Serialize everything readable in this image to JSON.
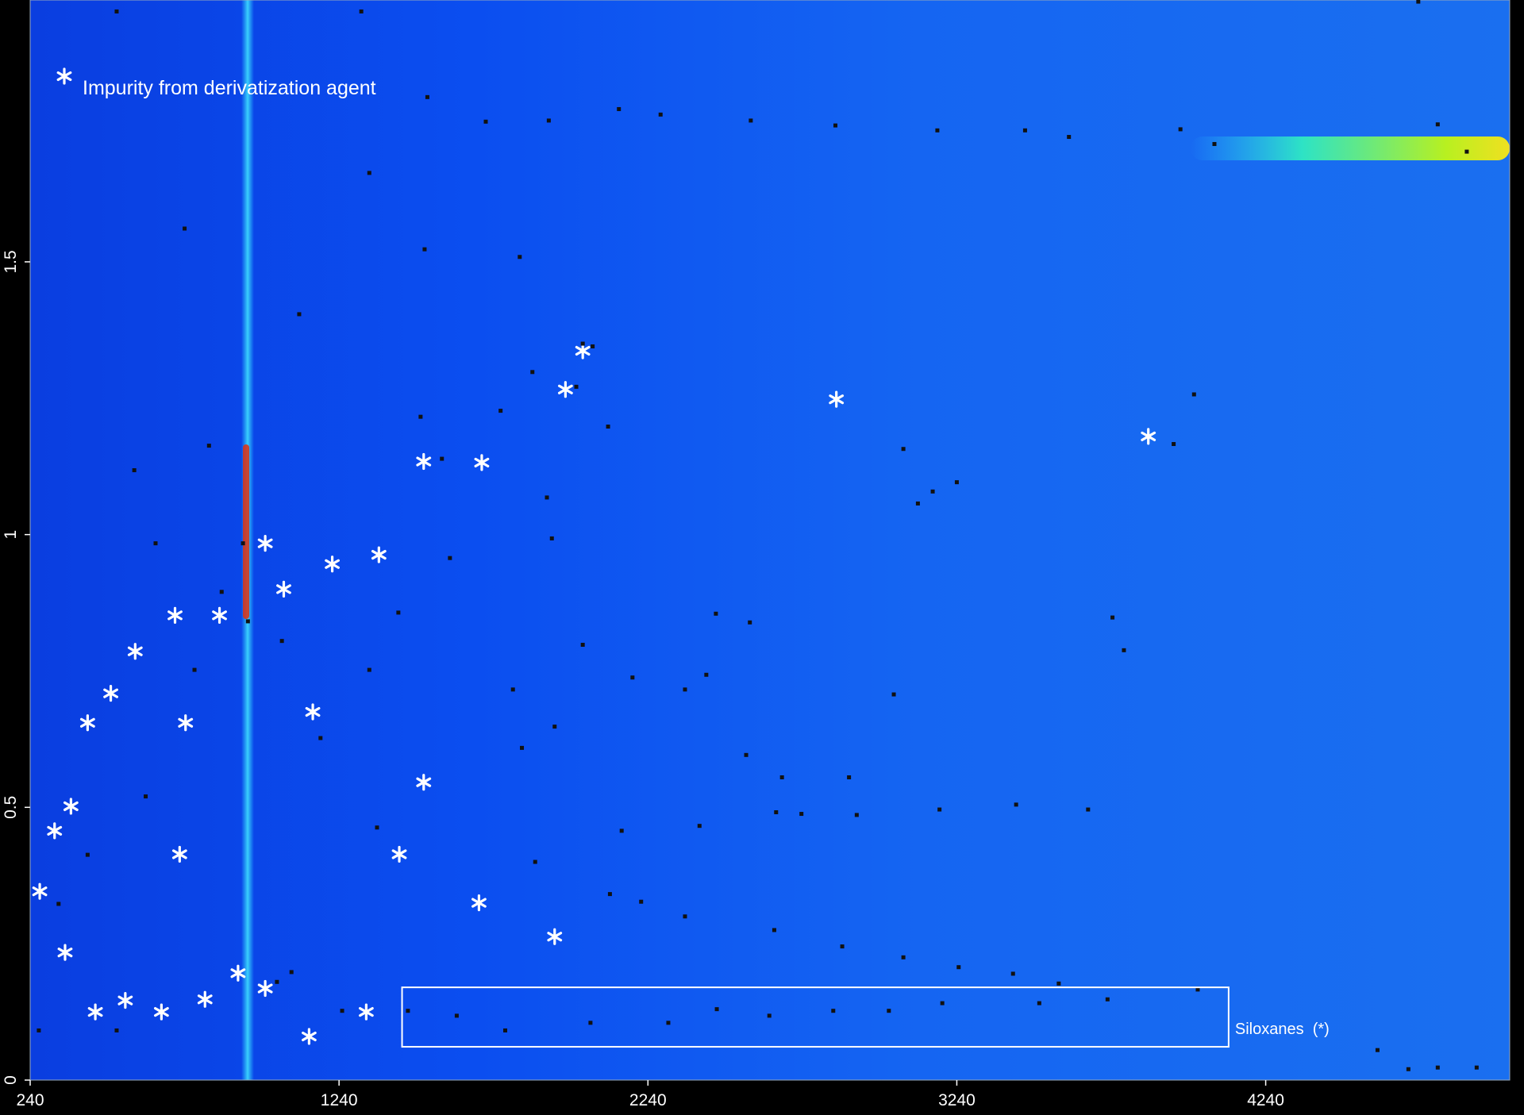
{
  "chart_data": {
    "type": "scatter",
    "xlim": [
      240,
      5030
    ],
    "ylim": [
      0,
      1.98
    ],
    "xticks": [
      240,
      1240,
      2240,
      3240,
      4240
    ],
    "yticks": [
      0,
      0.5,
      1,
      1.5
    ],
    "legend": "top-left",
    "series": [
      {
        "name": "Impurity from derivatization agent",
        "color": "#ffffff",
        "marker": "asterisk",
        "x": [
          2029,
          1973,
          2850,
          3860,
          1514,
          1702,
          1001,
          1369,
          1218,
          1061,
          709,
          853,
          580,
          501,
          426,
          743,
          1155,
          1514,
          372,
          319,
          724,
          1435,
          271,
          1693,
          1938,
          353,
          913,
          1001,
          548,
          806,
          451,
          665,
          1328,
          1143
        ],
        "y": [
          1.337,
          1.266,
          1.248,
          1.18,
          1.134,
          1.132,
          0.984,
          0.963,
          0.946,
          0.9,
          0.852,
          0.852,
          0.786,
          0.709,
          0.655,
          0.655,
          0.675,
          0.546,
          0.502,
          0.457,
          0.414,
          0.414,
          0.346,
          0.325,
          0.263,
          0.234,
          0.196,
          0.168,
          0.146,
          0.148,
          0.125,
          0.125,
          0.125,
          0.08
        ]
      },
      {
        "color": "#111111",
        "marker": "square",
        "x": [
          1338,
          1517,
          1825,
          2029,
          2061,
          1866,
          2008,
          2111,
          1763,
          1504,
          1573,
          1913,
          1929,
          3114,
          3162,
          3240,
          3067,
          4008,
          3942,
          3744,
          3781,
          3036,
          2570,
          2460,
          2190,
          2429,
          2360,
          2029,
          1599,
          1432,
          1338,
          1803,
          1938,
          1832,
          2558,
          2674,
          2891,
          2655,
          2737,
          3184,
          3432,
          3665,
          2916,
          2407,
          2155,
          1875,
          2117,
          2218,
          2360,
          2649,
          2869,
          3067,
          3246,
          3422,
          3570,
          4020,
          3728,
          3507,
          3193,
          3020,
          2840,
          2633,
          2463,
          2306,
          2054,
          1778,
          1621,
          1463,
          4602,
          4702,
          4797,
          4923,
          3964,
          4797,
          4891,
          4074,
          3603,
          3461,
          3177,
          2847,
          520,
          1526,
          1715,
          1919,
          2146,
          2573,
          2281,
          1312,
          4734,
          929,
          945,
          1055,
          772,
          614,
          426,
          332,
          268,
          520,
          1086,
          1111,
          740,
          577,
          646,
          819,
          860,
          1180,
          1039,
          1250,
          1363
        ],
        "y": [
          1.663,
          1.523,
          1.509,
          1.35,
          1.345,
          1.298,
          1.271,
          1.198,
          1.227,
          1.216,
          1.139,
          1.068,
          0.993,
          1.057,
          1.079,
          1.096,
          1.157,
          1.257,
          1.166,
          0.848,
          0.788,
          0.707,
          0.839,
          0.855,
          0.738,
          0.743,
          0.716,
          0.798,
          0.957,
          0.857,
          0.752,
          0.716,
          0.648,
          0.609,
          0.596,
          0.555,
          0.555,
          0.491,
          0.488,
          0.496,
          0.505,
          0.496,
          0.486,
          0.466,
          0.457,
          0.4,
          0.341,
          0.327,
          0.3,
          0.275,
          0.245,
          0.225,
          0.207,
          0.195,
          0.177,
          0.166,
          0.148,
          0.141,
          0.141,
          0.127,
          0.127,
          0.118,
          0.13,
          0.105,
          0.105,
          0.091,
          0.118,
          0.127,
          0.055,
          0.02,
          0.023,
          0.023,
          1.743,
          1.752,
          1.702,
          1.716,
          1.729,
          1.741,
          1.741,
          1.75,
          1.959,
          1.802,
          1.757,
          1.759,
          1.78,
          1.759,
          1.77,
          1.959,
          1.977,
          0.984,
          0.841,
          0.805,
          0.752,
          0.52,
          0.413,
          0.323,
          0.091,
          0.091,
          0.198,
          1.404,
          1.561,
          1.118,
          0.984,
          1.163,
          0.895,
          0.627,
          0.18,
          0.127,
          0.463
        ]
      }
    ],
    "region": {
      "label": "Siloxanes  (*)",
      "x": [
        1444,
        4120
      ],
      "y": [
        0.061,
        0.17
      ]
    }
  }
}
